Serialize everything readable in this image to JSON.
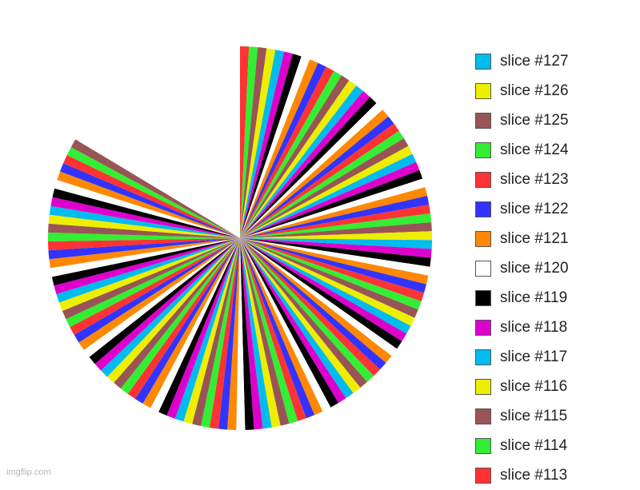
{
  "chart_data": {
    "type": "pie",
    "slice_count": 113,
    "start_angle_deg": 0,
    "sweep_deg": 301,
    "palette": [
      "#ff3333",
      "#33ee33",
      "#995555",
      "#eeee00",
      "#00bbee",
      "#dd00cc",
      "#000000",
      "#ffffff",
      "#ff8800",
      "#3333ff"
    ],
    "legend": [
      {
        "label": "slice #127",
        "color": "#00bbee"
      },
      {
        "label": "slice #126",
        "color": "#eeee00"
      },
      {
        "label": "slice #125",
        "color": "#995555"
      },
      {
        "label": "slice #124",
        "color": "#33ee33"
      },
      {
        "label": "slice #123",
        "color": "#ff3333"
      },
      {
        "label": "slice #122",
        "color": "#3333ff"
      },
      {
        "label": "slice #121",
        "color": "#ff8800"
      },
      {
        "label": "slice #120",
        "color": "#ffffff"
      },
      {
        "label": "slice #119",
        "color": "#000000"
      },
      {
        "label": "slice #118",
        "color": "#dd00cc"
      },
      {
        "label": "slice #117",
        "color": "#00bbee"
      },
      {
        "label": "slice #116",
        "color": "#eeee00"
      },
      {
        "label": "slice #115",
        "color": "#995555"
      },
      {
        "label": "slice #114",
        "color": "#33ee33"
      },
      {
        "label": "slice #113",
        "color": "#ff3333"
      }
    ]
  },
  "watermark": "imgflip.com"
}
